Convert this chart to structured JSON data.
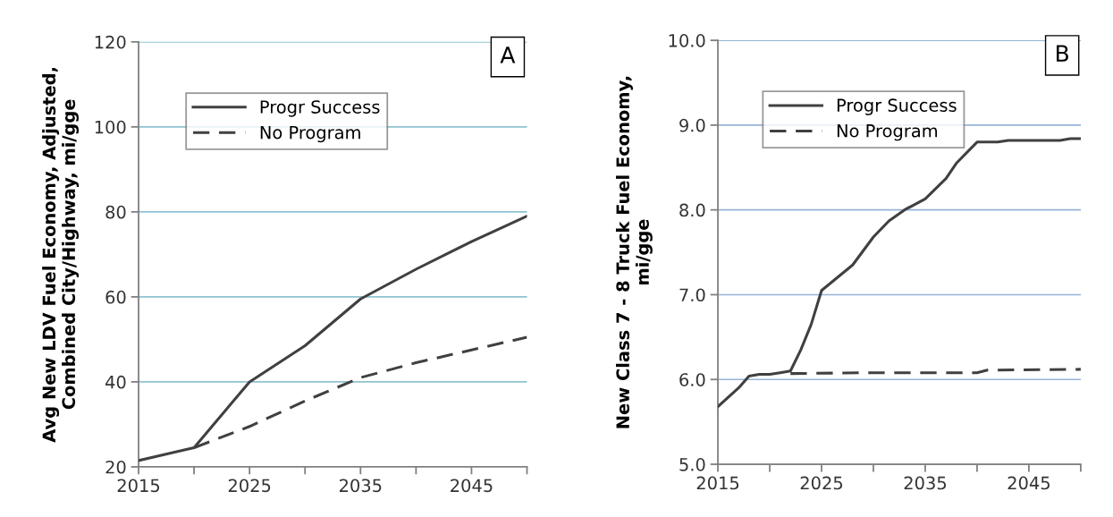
{
  "chart_data": [
    {
      "type": "line",
      "ylabel": "Avg New LDV Fuel Economy, Adjusted,\nCombined City/Highway, mi/gge",
      "annotations": [
        "A"
      ],
      "xlim": [
        2015,
        2050
      ],
      "xticks": [
        2015,
        {
          "value": 2020,
          "label": null
        },
        2025,
        {
          "value": 2030,
          "label": null
        },
        2035,
        {
          "value": 2040,
          "label": null
        },
        2045,
        {
          "value": 2050,
          "label": null
        }
      ],
      "ylim": [
        20,
        120
      ],
      "yticks": [
        20,
        40,
        60,
        80,
        100,
        120
      ],
      "grid": "y",
      "legend": "top left",
      "series": [
        {
          "name": "Progr Success",
          "color": "#404040",
          "line_style": "solid",
          "x": [
            2015,
            2020,
            2025,
            2030,
            2035,
            2040,
            2045,
            2050
          ],
          "values": [
            21.5,
            24.5,
            40,
            48.5,
            59.5,
            66.5,
            73,
            79
          ]
        },
        {
          "name": "No Program",
          "color": "#404040",
          "line_style": "dashed",
          "x": [
            2020,
            2025,
            2030,
            2035,
            2040,
            2045,
            2050
          ],
          "values": [
            24.5,
            29.5,
            35.5,
            41,
            44.5,
            47.5,
            50.5
          ]
        }
      ]
    },
    {
      "type": "line",
      "ylabel": "New Class 7 - 8 Truck Fuel Economy,\nmi/gge",
      "annotations": [
        "B"
      ],
      "xlim": [
        2015,
        2050
      ],
      "xticks": [
        2015,
        {
          "value": 2020,
          "label": null
        },
        2025,
        {
          "value": 2030,
          "label": null
        },
        2035,
        {
          "value": 2040,
          "label": null
        },
        2045,
        {
          "value": 2050,
          "label": null
        }
      ],
      "ylim": [
        5,
        10
      ],
      "yticks": [
        {
          "value": 5,
          "label": "5.0"
        },
        {
          "value": 6,
          "label": "6.0"
        },
        {
          "value": 7,
          "label": "7.0"
        },
        {
          "value": 8,
          "label": "8.0"
        },
        {
          "value": 9,
          "label": "9.0"
        },
        {
          "value": 10,
          "label": "10.0"
        }
      ],
      "grid": "y",
      "legend": "top left",
      "series": [
        {
          "name": "Progr Success",
          "color": "#404040",
          "line_style": "solid",
          "x": [
            2015,
            2017,
            2018,
            2019,
            2020,
            2021,
            2022,
            2023,
            2024,
            2025,
            2026.5,
            2028,
            2030,
            2031.5,
            2033,
            2035,
            2037,
            2038,
            2040,
            2042,
            2043,
            2048,
            2049,
            2050
          ],
          "values": [
            5.68,
            5.9,
            6.04,
            6.06,
            6.06,
            6.08,
            6.1,
            6.35,
            6.65,
            7.05,
            7.2,
            7.35,
            7.68,
            7.87,
            8.0,
            8.13,
            8.37,
            8.55,
            8.8,
            8.8,
            8.82,
            8.82,
            8.84,
            8.84
          ]
        },
        {
          "name": "No Program",
          "color": "#404040",
          "line_style": "dashed",
          "x": [
            2022,
            2030,
            2040,
            2041,
            2050
          ],
          "values": [
            6.07,
            6.08,
            6.08,
            6.11,
            6.12
          ]
        }
      ]
    }
  ]
}
